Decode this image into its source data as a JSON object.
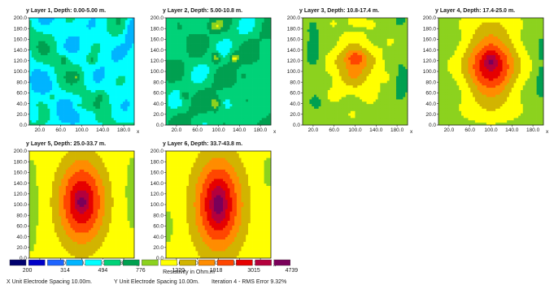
{
  "chart_data": {
    "type": "heatmap",
    "panels": [
      {
        "title": "y Layer 1, Depth: 0.00-5.00 m.",
        "variant": 1
      },
      {
        "title": "y Layer 2, Depth: 5.00-10.8 m.",
        "variant": 2
      },
      {
        "title": "y Layer 3, Depth: 10.8-17.4 m.",
        "variant": 3
      },
      {
        "title": "y Layer 4, Depth: 17.4-25.0 m.",
        "variant": 4
      },
      {
        "title": "y Layer 5, Depth: 25.0-33.7 m.",
        "variant": 5
      },
      {
        "title": "y Layer 6, Depth: 33.7-43.8 m.",
        "variant": 6
      }
    ],
    "xlim": [
      0,
      200
    ],
    "ylim": [
      0,
      200
    ],
    "x_ticks": [
      "20.0",
      "60.0",
      "100.0",
      "140.0",
      "180.0"
    ],
    "x_tick_values": [
      20,
      60,
      100,
      140,
      180
    ],
    "y_ticks": [
      "0.0",
      "20.0",
      "40.0",
      "60.0",
      "80.0",
      "100.0",
      "120.0",
      "140.0",
      "160.0",
      "180.0",
      "200.0"
    ],
    "y_tick_values": [
      0,
      20,
      40,
      60,
      80,
      100,
      120,
      140,
      160,
      180,
      200
    ],
    "x_axis_label": "x",
    "colorbar": {
      "colors": [
        "#00006e",
        "#0000c8",
        "#1e64ff",
        "#00b4ff",
        "#00ffff",
        "#00d278",
        "#00a050",
        "#8cd21e",
        "#ffff00",
        "#d2b400",
        "#ff8c00",
        "#ff4600",
        "#e60000",
        "#b4003c",
        "#7a005a"
      ],
      "labels": [
        "200",
        "314",
        "494",
        "776",
        "1220",
        "1918",
        "3015",
        "4739"
      ],
      "title": "Resistivity in Ohm.m"
    }
  },
  "footer": {
    "x_spacing": "X Unit Electrode Spacing 10.00m.",
    "y_spacing": "Y Unit Electrode Spacing 10.00m.",
    "iteration": "Iteration 4 - RMS Error 9.32%"
  }
}
